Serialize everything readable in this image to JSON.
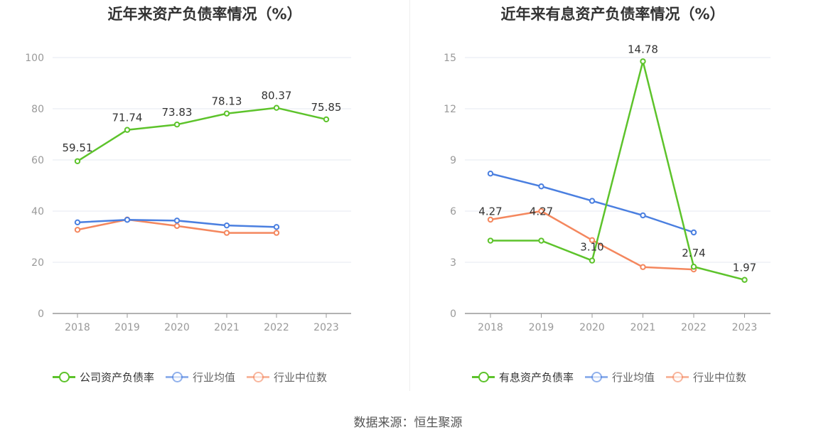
{
  "chart_data": [
    {
      "type": "line",
      "title": "近年来资产负债率情况（%）",
      "categories": [
        "2018",
        "2019",
        "2020",
        "2021",
        "2022",
        "2023"
      ],
      "ylim": [
        0,
        100
      ],
      "yticks": [
        0,
        20,
        40,
        60,
        80,
        100
      ],
      "grid": true,
      "legend_position": "bottom",
      "series": [
        {
          "name": "公司资产负债率",
          "color": "#5dc32b",
          "values": [
            59.51,
            71.74,
            73.83,
            78.13,
            80.37,
            75.85
          ],
          "labels": [
            "59.51",
            "71.74",
            "73.83",
            "78.13",
            "80.37",
            "75.85"
          ]
        },
        {
          "name": "行业均值",
          "color": "#4a7fe0",
          "values": [
            35.6,
            36.6,
            36.3,
            34.4,
            33.8,
            null
          ]
        },
        {
          "name": "行业中位数",
          "color": "#f4875e",
          "values": [
            32.7,
            36.7,
            34.2,
            31.5,
            31.5,
            null
          ]
        }
      ]
    },
    {
      "type": "line",
      "title": "近年来有息资产负债率情况（%）",
      "categories": [
        "2018",
        "2019",
        "2020",
        "2021",
        "2022",
        "2023"
      ],
      "ylim": [
        0,
        15
      ],
      "yticks": [
        0,
        3,
        6,
        9,
        12,
        15
      ],
      "grid": true,
      "legend_position": "bottom",
      "series": [
        {
          "name": "有息资产负债率",
          "color": "#5dc32b",
          "values": [
            4.27,
            4.27,
            3.1,
            14.78,
            2.74,
            1.97
          ],
          "labels": [
            "4.27",
            "4.27",
            "3.10",
            "14.78",
            "2.74",
            "1.97"
          ]
        },
        {
          "name": "行业均值",
          "color": "#4a7fe0",
          "values": [
            8.2,
            7.45,
            6.6,
            5.75,
            4.75,
            null
          ]
        },
        {
          "name": "行业中位数",
          "color": "#f4875e",
          "values": [
            5.5,
            6.0,
            4.3,
            2.72,
            2.58,
            null
          ]
        }
      ]
    }
  ],
  "source": "数据来源：恒生聚源"
}
